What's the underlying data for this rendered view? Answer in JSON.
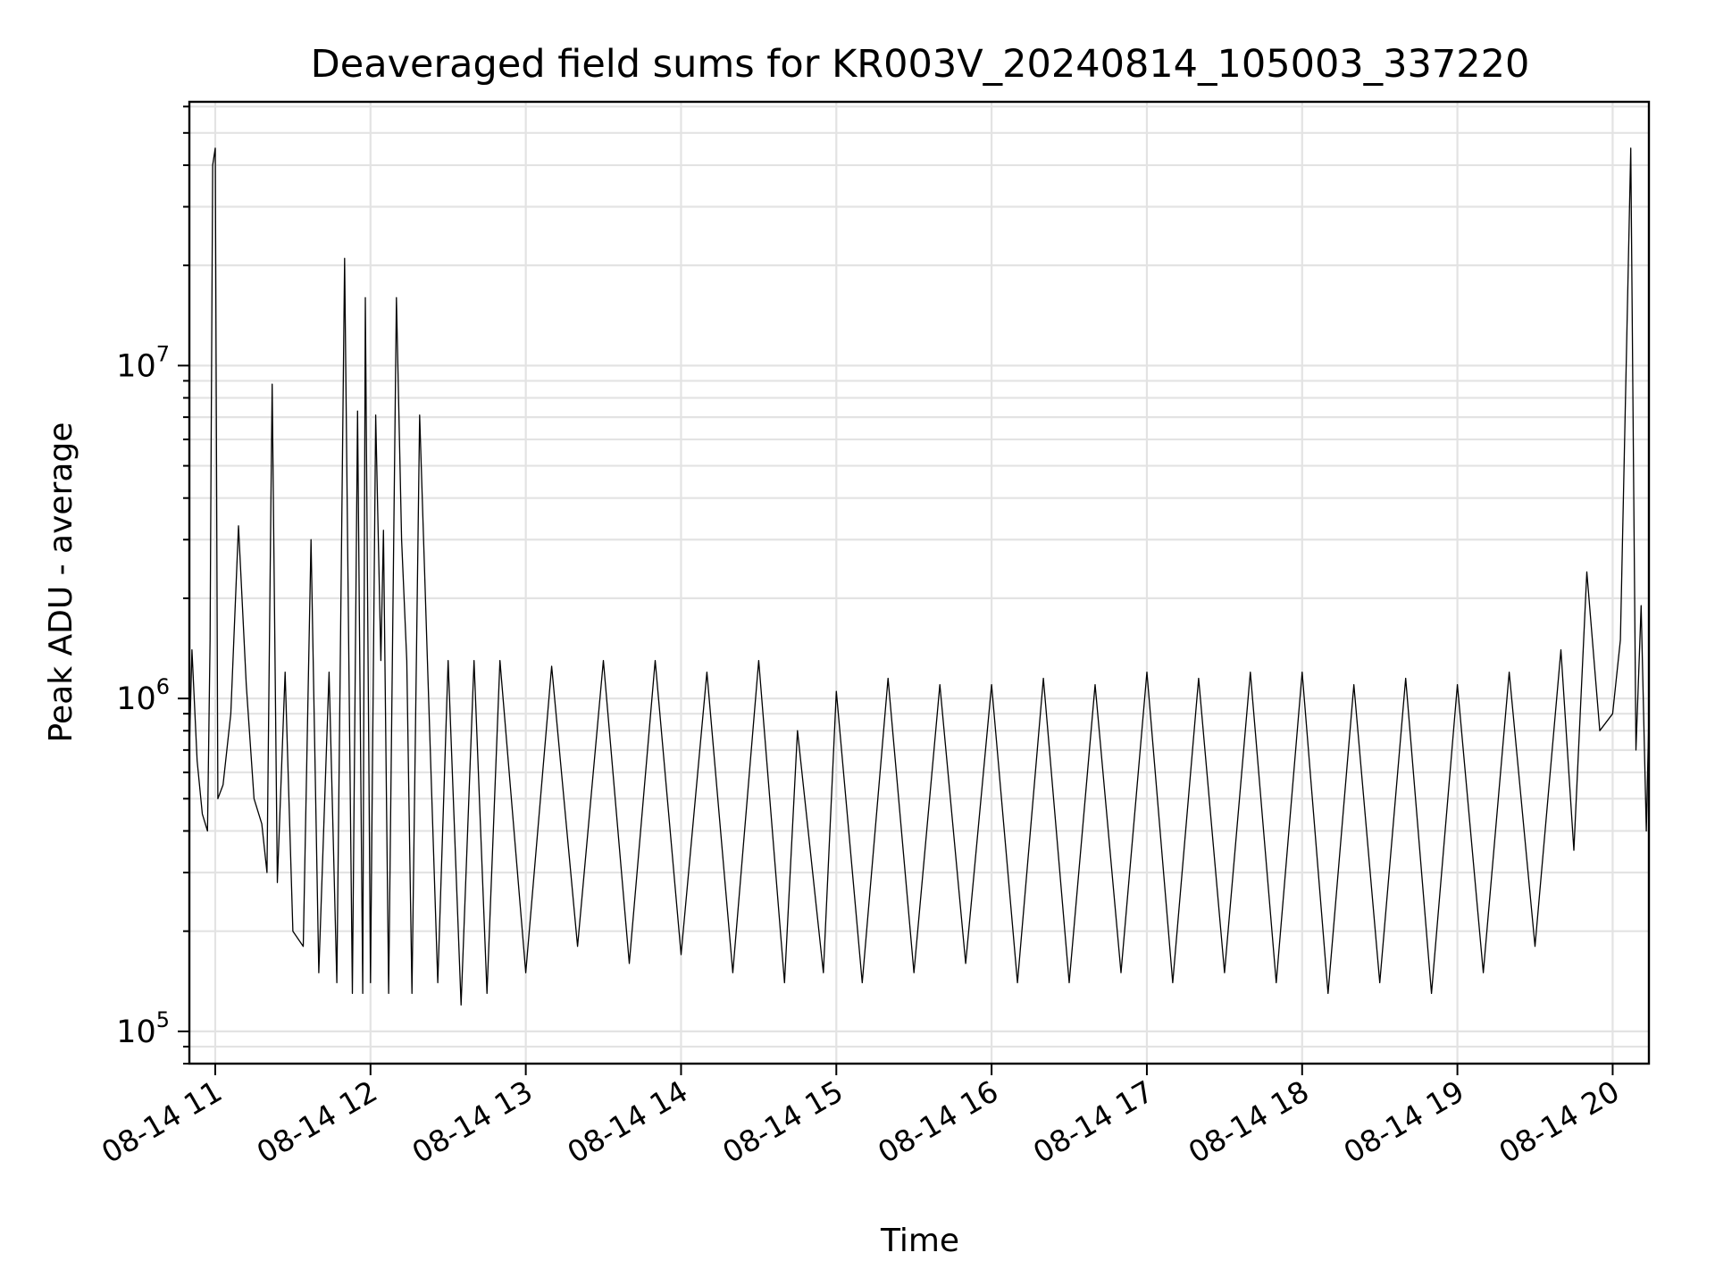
{
  "chart_data": {
    "type": "line",
    "title": "Deaveraged field sums for KR003V_20240814_105003_337220",
    "xlabel": "Time",
    "ylabel": "Peak ADU - average",
    "x_scale": "time",
    "y_scale": "log",
    "xlim": [
      "2024-08-14 10:50",
      "2024-08-14 20:14"
    ],
    "ylim": [
      80000,
      62000000
    ],
    "grid": true,
    "legend": "none",
    "line_color": "#000000",
    "xticks": [
      {
        "t": "2024-08-14 11:00",
        "label": "08-14 11"
      },
      {
        "t": "2024-08-14 12:00",
        "label": "08-14 12"
      },
      {
        "t": "2024-08-14 13:00",
        "label": "08-14 13"
      },
      {
        "t": "2024-08-14 14:00",
        "label": "08-14 14"
      },
      {
        "t": "2024-08-14 15:00",
        "label": "08-14 15"
      },
      {
        "t": "2024-08-14 16:00",
        "label": "08-14 16"
      },
      {
        "t": "2024-08-14 17:00",
        "label": "08-14 17"
      },
      {
        "t": "2024-08-14 18:00",
        "label": "08-14 18"
      },
      {
        "t": "2024-08-14 19:00",
        "label": "08-14 19"
      },
      {
        "t": "2024-08-14 20:00",
        "label": "08-14 20"
      }
    ],
    "yticks": [
      {
        "value": 100000,
        "base": "10",
        "exp": "5"
      },
      {
        "value": 1000000,
        "base": "10",
        "exp": "6"
      },
      {
        "value": 10000000,
        "base": "10",
        "exp": "7"
      }
    ],
    "series": [
      {
        "points": [
          [
            "2024-08-14 10:50",
            700000
          ],
          [
            "2024-08-14 10:51",
            1400000
          ],
          [
            "2024-08-14 10:53",
            650000
          ],
          [
            "2024-08-14 10:55",
            450000
          ],
          [
            "2024-08-14 10:57",
            400000
          ],
          [
            "2024-08-14 10:58",
            1500000
          ],
          [
            "2024-08-14 10:59",
            40000000
          ],
          [
            "2024-08-14 11:00",
            45000000
          ],
          [
            "2024-08-14 11:01",
            500000
          ],
          [
            "2024-08-14 11:03",
            550000
          ],
          [
            "2024-08-14 11:06",
            900000
          ],
          [
            "2024-08-14 11:09",
            3300000
          ],
          [
            "2024-08-14 11:12",
            1100000
          ],
          [
            "2024-08-14 11:15",
            500000
          ],
          [
            "2024-08-14 11:18",
            420000
          ],
          [
            "2024-08-14 11:20",
            300000
          ],
          [
            "2024-08-14 11:22",
            8800000
          ],
          [
            "2024-08-14 11:24",
            280000
          ],
          [
            "2024-08-14 11:27",
            1200000
          ],
          [
            "2024-08-14 11:30",
            200000
          ],
          [
            "2024-08-14 11:34",
            180000
          ],
          [
            "2024-08-14 11:37",
            3000000
          ],
          [
            "2024-08-14 11:40",
            150000
          ],
          [
            "2024-08-14 11:44",
            1200000
          ],
          [
            "2024-08-14 11:47",
            140000
          ],
          [
            "2024-08-14 11:50",
            21000000
          ],
          [
            "2024-08-14 11:53",
            130000
          ],
          [
            "2024-08-14 11:55",
            7300000
          ],
          [
            "2024-08-14 11:57",
            130000
          ],
          [
            "2024-08-14 11:58",
            16000000
          ],
          [
            "2024-08-14 12:00",
            140000
          ],
          [
            "2024-08-14 12:02",
            7100000
          ],
          [
            "2024-08-14 12:04",
            1300000
          ],
          [
            "2024-08-14 12:05",
            3200000
          ],
          [
            "2024-08-14 12:07",
            130000
          ],
          [
            "2024-08-14 12:10",
            16000000
          ],
          [
            "2024-08-14 12:12",
            3000000
          ],
          [
            "2024-08-14 12:14",
            1300000
          ],
          [
            "2024-08-14 12:16",
            130000
          ],
          [
            "2024-08-14 12:19",
            7100000
          ],
          [
            "2024-08-14 12:22",
            1300000
          ],
          [
            "2024-08-14 12:26",
            140000
          ],
          [
            "2024-08-14 12:30",
            1300000
          ],
          [
            "2024-08-14 12:35",
            120000
          ],
          [
            "2024-08-14 12:40",
            1300000
          ],
          [
            "2024-08-14 12:45",
            130000
          ],
          [
            "2024-08-14 12:50",
            1300000
          ],
          [
            "2024-08-14 13:00",
            150000
          ],
          [
            "2024-08-14 13:10",
            1250000
          ],
          [
            "2024-08-14 13:20",
            180000
          ],
          [
            "2024-08-14 13:30",
            1300000
          ],
          [
            "2024-08-14 13:40",
            160000
          ],
          [
            "2024-08-14 13:50",
            1300000
          ],
          [
            "2024-08-14 14:00",
            170000
          ],
          [
            "2024-08-14 14:10",
            1200000
          ],
          [
            "2024-08-14 14:20",
            150000
          ],
          [
            "2024-08-14 14:30",
            1300000
          ],
          [
            "2024-08-14 14:40",
            140000
          ],
          [
            "2024-08-14 14:45",
            800000
          ],
          [
            "2024-08-14 14:55",
            150000
          ],
          [
            "2024-08-14 15:00",
            1050000
          ],
          [
            "2024-08-14 15:10",
            140000
          ],
          [
            "2024-08-14 15:20",
            1150000
          ],
          [
            "2024-08-14 15:30",
            150000
          ],
          [
            "2024-08-14 15:40",
            1100000
          ],
          [
            "2024-08-14 15:50",
            160000
          ],
          [
            "2024-08-14 16:00",
            1100000
          ],
          [
            "2024-08-14 16:10",
            140000
          ],
          [
            "2024-08-14 16:20",
            1150000
          ],
          [
            "2024-08-14 16:30",
            140000
          ],
          [
            "2024-08-14 16:40",
            1100000
          ],
          [
            "2024-08-14 16:50",
            150000
          ],
          [
            "2024-08-14 17:00",
            1200000
          ],
          [
            "2024-08-14 17:10",
            140000
          ],
          [
            "2024-08-14 17:20",
            1150000
          ],
          [
            "2024-08-14 17:30",
            150000
          ],
          [
            "2024-08-14 17:40",
            1200000
          ],
          [
            "2024-08-14 17:50",
            140000
          ],
          [
            "2024-08-14 18:00",
            1200000
          ],
          [
            "2024-08-14 18:10",
            130000
          ],
          [
            "2024-08-14 18:20",
            1100000
          ],
          [
            "2024-08-14 18:30",
            140000
          ],
          [
            "2024-08-14 18:40",
            1150000
          ],
          [
            "2024-08-14 18:50",
            130000
          ],
          [
            "2024-08-14 19:00",
            1100000
          ],
          [
            "2024-08-14 19:10",
            150000
          ],
          [
            "2024-08-14 19:20",
            1200000
          ],
          [
            "2024-08-14 19:30",
            180000
          ],
          [
            "2024-08-14 19:40",
            1400000
          ],
          [
            "2024-08-14 19:45",
            350000
          ],
          [
            "2024-08-14 19:50",
            2400000
          ],
          [
            "2024-08-14 19:55",
            800000
          ],
          [
            "2024-08-14 20:00",
            900000
          ],
          [
            "2024-08-14 20:03",
            1500000
          ],
          [
            "2024-08-14 20:07",
            45000000
          ],
          [
            "2024-08-14 20:09",
            700000
          ],
          [
            "2024-08-14 20:11",
            1900000
          ],
          [
            "2024-08-14 20:13",
            400000
          ],
          [
            "2024-08-14 20:14",
            900000
          ]
        ]
      }
    ]
  }
}
